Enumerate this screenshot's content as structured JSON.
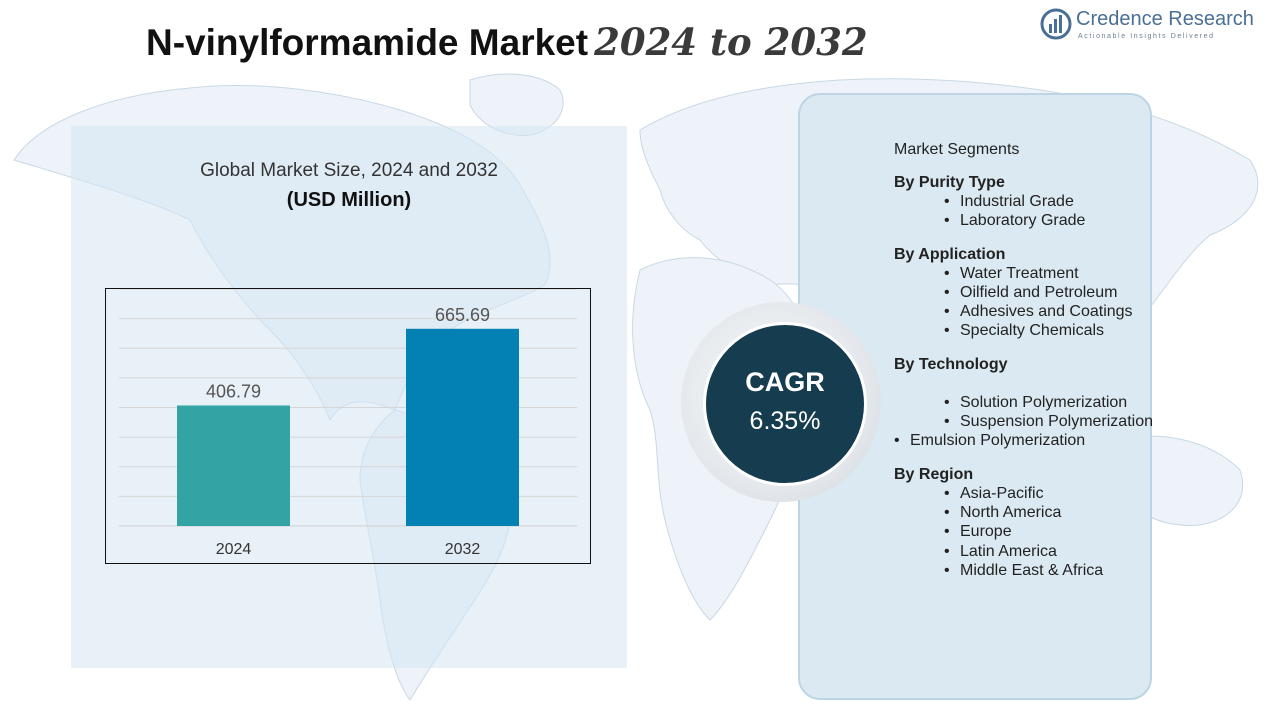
{
  "title": {
    "main": "N-vinylformamide Market",
    "years": "2024 to 2032"
  },
  "logo": {
    "name": "Credence Research",
    "tagline": "Actionable Insights Delivered"
  },
  "chart": {
    "title": "Global Market Size, 2024 and 2032",
    "unit": "(USD Million)"
  },
  "chart_data": {
    "type": "bar",
    "title": "Global Market Size, 2024 and 2032",
    "ylabel": "USD Million",
    "categories": [
      "2024",
      "2032"
    ],
    "values": [
      406.79,
      665.69
    ],
    "value_labels": [
      "406.79",
      "665.69"
    ],
    "colors": [
      "#34a3a3",
      "#0380b4"
    ],
    "ylim": [
      0,
      800
    ],
    "grid": true
  },
  "cagr": {
    "label": "CAGR",
    "value": "6.35%"
  },
  "segments": {
    "heading": "Market Segments",
    "groups": [
      {
        "title": "By Purity Type",
        "items": [
          "Industrial Grade",
          "Laboratory Grade"
        ]
      },
      {
        "title": "By Application",
        "items": [
          "Water Treatment",
          "Oilfield and Petroleum",
          "Adhesives and Coatings",
          "Specialty Chemicals"
        ]
      },
      {
        "title": "By Technology",
        "items": [
          "Solution Polymerization",
          "Suspension Polymerization",
          "Emulsion Polymerization"
        ]
      },
      {
        "title": "By Region",
        "items": [
          "Asia-Pacific",
          "North America",
          "Europe",
          "Latin America",
          "Middle East & Africa"
        ]
      }
    ]
  }
}
